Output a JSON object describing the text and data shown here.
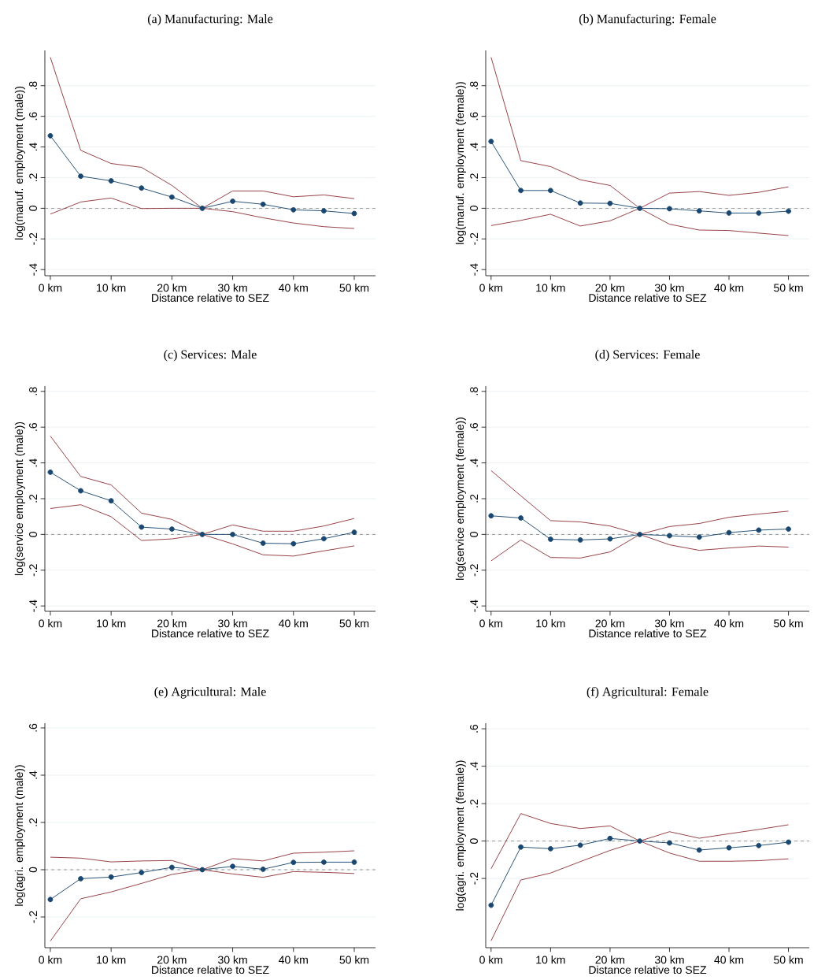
{
  "chart_data": [
    {
      "type": "line",
      "title": "(a) Manufacturing: Male",
      "xlabel": "Distance relative to SEZ",
      "ylabel": "log(manuf. employment (male))",
      "x": [
        0,
        5,
        10,
        15,
        20,
        25,
        30,
        35,
        40,
        45,
        50
      ],
      "xlim": [
        -0.9,
        53.5
      ],
      "ylim": [
        -0.44,
        1.03
      ],
      "xticks": [
        {
          "value": 0,
          "label": "0 km"
        },
        {
          "value": 10,
          "label": "10 km"
        },
        {
          "value": 20,
          "label": "20 km"
        },
        {
          "value": 30,
          "label": "30 km"
        },
        {
          "value": 40,
          "label": "40 km"
        },
        {
          "value": 50,
          "label": "50 km"
        }
      ],
      "yticks": [
        {
          "value": -0.4,
          "label": "-.4"
        },
        {
          "value": -0.2,
          "label": "-.2"
        },
        0,
        {
          "value": 0.2,
          "label": ".2"
        },
        {
          "value": 0.4,
          "label": ".4"
        },
        {
          "value": 0.6,
          "label": ".6"
        },
        {
          "value": 0.8,
          "label": ".8"
        }
      ],
      "grid": "y",
      "ref_lines": [
        {
          "axis": "y",
          "value": 0,
          "color": "#808080",
          "line_style": "dashed"
        }
      ],
      "series": [
        {
          "color": "#90353b",
          "marker": "none",
          "values": [
            0.985,
            0.378,
            0.292,
            0.267,
            0.149,
            0,
            0.113,
            0.113,
            0.075,
            0.087,
            0.063
          ]
        },
        {
          "color": "#90353b",
          "marker": "none",
          "values": [
            -0.038,
            0.041,
            0.067,
            -0.002,
            0,
            0,
            -0.022,
            -0.062,
            -0.096,
            -0.12,
            -0.132
          ]
        },
        {
          "color": "#1a476f",
          "marker": "circle",
          "values": [
            0.473,
            0.209,
            0.179,
            0.132,
            0.073,
            0,
            0.046,
            0.026,
            -0.01,
            -0.017,
            -0.034
          ]
        }
      ]
    },
    {
      "type": "line",
      "title": "(b) Manufacturing: Female",
      "xlabel": "Distance relative to SEZ",
      "ylabel": "log(manuf. employment (female))",
      "x": [
        0,
        5,
        10,
        15,
        20,
        25,
        30,
        35,
        40,
        45,
        50
      ],
      "xlim": [
        -0.9,
        53.5
      ],
      "ylim": [
        -0.44,
        1.03
      ],
      "xticks": [
        {
          "value": 0,
          "label": "0 km"
        },
        {
          "value": 10,
          "label": "10 km"
        },
        {
          "value": 20,
          "label": "20 km"
        },
        {
          "value": 30,
          "label": "30 km"
        },
        {
          "value": 40,
          "label": "40 km"
        },
        {
          "value": 50,
          "label": "50 km"
        }
      ],
      "yticks": [
        {
          "value": -0.4,
          "label": "-.4"
        },
        {
          "value": -0.2,
          "label": "-.2"
        },
        0,
        {
          "value": 0.2,
          "label": ".2"
        },
        {
          "value": 0.4,
          "label": ".4"
        },
        {
          "value": 0.6,
          "label": ".6"
        },
        {
          "value": 0.8,
          "label": ".8"
        }
      ],
      "grid": "y",
      "ref_lines": [
        {
          "axis": "y",
          "value": 0,
          "color": "#808080",
          "line_style": "dashed"
        }
      ],
      "series": [
        {
          "color": "#90353b",
          "marker": "none",
          "values": [
            0.985,
            0.311,
            0.272,
            0.186,
            0.149,
            0,
            0.099,
            0.109,
            0.084,
            0.104,
            0.14
          ]
        },
        {
          "color": "#90353b",
          "marker": "none",
          "values": [
            -0.113,
            -0.079,
            -0.039,
            -0.116,
            -0.082,
            0,
            -0.104,
            -0.142,
            -0.145,
            -0.162,
            -0.178
          ]
        },
        {
          "color": "#1a476f",
          "marker": "circle",
          "values": [
            0.436,
            0.116,
            0.116,
            0.034,
            0.032,
            0,
            -0.003,
            -0.017,
            -0.031,
            -0.031,
            -0.019
          ]
        }
      ]
    },
    {
      "type": "line",
      "title": "(c) Services: Male",
      "xlabel": "Distance relative to SEZ",
      "ylabel": "log(service employment (male))",
      "x": [
        0,
        5,
        10,
        15,
        20,
        25,
        30,
        35,
        40,
        45,
        50
      ],
      "xlim": [
        -0.9,
        53.5
      ],
      "ylim": [
        -0.43,
        0.83
      ],
      "xticks": [
        {
          "value": 0,
          "label": "0 km"
        },
        {
          "value": 10,
          "label": "10 km"
        },
        {
          "value": 20,
          "label": "20 km"
        },
        {
          "value": 30,
          "label": "30 km"
        },
        {
          "value": 40,
          "label": "40 km"
        },
        {
          "value": 50,
          "label": "50 km"
        }
      ],
      "yticks": [
        {
          "value": -0.4,
          "label": "-.4"
        },
        {
          "value": -0.2,
          "label": "-.2"
        },
        0,
        {
          "value": 0.2,
          "label": ".2"
        },
        {
          "value": 0.4,
          "label": ".4"
        },
        {
          "value": 0.6,
          "label": ".6"
        },
        {
          "value": 0.8,
          "label": ".8"
        }
      ],
      "grid": "y",
      "ref_lines": [
        {
          "axis": "y",
          "value": 0,
          "color": "#808080",
          "line_style": "dashed"
        }
      ],
      "series": [
        {
          "color": "#90353b",
          "marker": "none",
          "values": [
            0.55,
            0.324,
            0.277,
            0.119,
            0.084,
            0,
            0.053,
            0.018,
            0.018,
            0.047,
            0.089
          ]
        },
        {
          "color": "#90353b",
          "marker": "none",
          "values": [
            0.145,
            0.166,
            0.099,
            -0.034,
            -0.025,
            0,
            -0.053,
            -0.114,
            -0.121,
            -0.092,
            -0.064
          ]
        },
        {
          "color": "#1a476f",
          "marker": "circle",
          "values": [
            0.348,
            0.244,
            0.188,
            0.041,
            0.03,
            0,
            0,
            -0.049,
            -0.052,
            -0.024,
            0.012
          ]
        }
      ]
    },
    {
      "type": "line",
      "title": "(d) Services: Female",
      "xlabel": "Distance relative to SEZ",
      "ylabel": "log(service employment (female))",
      "x": [
        0,
        5,
        10,
        15,
        20,
        25,
        30,
        35,
        40,
        45,
        50
      ],
      "xlim": [
        -0.9,
        53.5
      ],
      "ylim": [
        -0.43,
        0.83
      ],
      "xticks": [
        {
          "value": 0,
          "label": "0 km"
        },
        {
          "value": 10,
          "label": "10 km"
        },
        {
          "value": 20,
          "label": "20 km"
        },
        {
          "value": 30,
          "label": "30 km"
        },
        {
          "value": 40,
          "label": "40 km"
        },
        {
          "value": 50,
          "label": "50 km"
        }
      ],
      "yticks": [
        {
          "value": -0.4,
          "label": "-.4"
        },
        {
          "value": -0.2,
          "label": "-.2"
        },
        0,
        {
          "value": 0.2,
          "label": ".2"
        },
        {
          "value": 0.4,
          "label": ".4"
        },
        {
          "value": 0.6,
          "label": ".6"
        },
        {
          "value": 0.8,
          "label": ".8"
        }
      ],
      "grid": "y",
      "ref_lines": [
        {
          "axis": "y",
          "value": 0,
          "color": "#808080",
          "line_style": "dashed"
        }
      ],
      "series": [
        {
          "color": "#90353b",
          "marker": "none",
          "values": [
            0.357,
            0.216,
            0.077,
            0.07,
            0.047,
            0,
            0.044,
            0.061,
            0.096,
            0.114,
            0.13
          ]
        },
        {
          "color": "#90353b",
          "marker": "none",
          "values": [
            -0.148,
            -0.031,
            -0.129,
            -0.132,
            -0.098,
            0,
            -0.058,
            -0.089,
            -0.076,
            -0.065,
            -0.071
          ]
        },
        {
          "color": "#1a476f",
          "marker": "circle",
          "values": [
            0.104,
            0.092,
            -0.027,
            -0.031,
            -0.025,
            0,
            -0.007,
            -0.015,
            0.01,
            0.024,
            0.03
          ]
        }
      ]
    },
    {
      "type": "line",
      "title": "(e) Agricultural: Male",
      "xlabel": "Distance relative to SEZ",
      "ylabel": "log(agri. employment (male))",
      "x": [
        0,
        5,
        10,
        15,
        20,
        25,
        30,
        35,
        40,
        45,
        50
      ],
      "xlim": [
        -0.9,
        53.5
      ],
      "ylim": [
        -0.33,
        0.62
      ],
      "xticks": [
        {
          "value": 0,
          "label": "0 km"
        },
        {
          "value": 10,
          "label": "10 km"
        },
        {
          "value": 20,
          "label": "20 km"
        },
        {
          "value": 30,
          "label": "30 km"
        },
        {
          "value": 40,
          "label": "40 km"
        },
        {
          "value": 50,
          "label": "50 km"
        }
      ],
      "yticks": [
        {
          "value": -0.2,
          "label": "-.2"
        },
        0,
        {
          "value": 0.2,
          "label": ".2"
        },
        {
          "value": 0.4,
          "label": ".4"
        },
        {
          "value": 0.6,
          "label": ".6"
        }
      ],
      "grid": "y",
      "ref_lines": [
        {
          "axis": "y",
          "value": 0,
          "color": "#808080",
          "line_style": "dashed"
        }
      ],
      "series": [
        {
          "color": "#90353b",
          "marker": "none",
          "values": [
            0.053,
            0.049,
            0.033,
            0.037,
            0.039,
            0,
            0.047,
            0.037,
            0.07,
            0.074,
            0.08
          ]
        },
        {
          "color": "#90353b",
          "marker": "none",
          "values": [
            -0.302,
            -0.123,
            -0.094,
            -0.058,
            -0.02,
            0,
            -0.018,
            -0.032,
            -0.008,
            -0.011,
            -0.016
          ]
        },
        {
          "color": "#1a476f",
          "marker": "circle",
          "values": [
            -0.126,
            -0.038,
            -0.031,
            -0.012,
            0.01,
            0,
            0.014,
            0.002,
            0.031,
            0.032,
            0.032
          ]
        }
      ]
    },
    {
      "type": "line",
      "title": "(f) Agricultural: Female",
      "xlabel": "Distance relative to SEZ",
      "ylabel": "log(agri. employment (female))",
      "x": [
        0,
        5,
        10,
        15,
        20,
        25,
        30,
        35,
        40,
        45,
        50
      ],
      "xlim": [
        -0.9,
        53.5
      ],
      "ylim": [
        -0.57,
        0.63
      ],
      "xticks": [
        {
          "value": 0,
          "label": "0 km"
        },
        {
          "value": 10,
          "label": "10 km"
        },
        {
          "value": 20,
          "label": "20 km"
        },
        {
          "value": 30,
          "label": "30 km"
        },
        {
          "value": 40,
          "label": "40 km"
        },
        {
          "value": 50,
          "label": "50 km"
        }
      ],
      "yticks": [
        {
          "value": -0.2,
          "label": "-.2"
        },
        0,
        {
          "value": 0.2,
          "label": ".2"
        },
        {
          "value": 0.4,
          "label": ".4"
        },
        {
          "value": 0.6,
          "label": ".6"
        }
      ],
      "grid": "y",
      "ref_lines": [
        {
          "axis": "y",
          "value": 0,
          "color": "#808080",
          "line_style": "dashed"
        }
      ],
      "series": [
        {
          "color": "#90353b",
          "marker": "none",
          "values": [
            -0.148,
            0.147,
            0.094,
            0.067,
            0.081,
            0,
            0.05,
            0.015,
            0.039,
            0.062,
            0.087
          ]
        },
        {
          "color": "#90353b",
          "marker": "none",
          "values": [
            -0.533,
            -0.208,
            -0.171,
            -0.11,
            -0.05,
            0,
            -0.064,
            -0.108,
            -0.108,
            -0.105,
            -0.095
          ]
        },
        {
          "color": "#1a476f",
          "marker": "circle",
          "values": [
            -0.343,
            -0.032,
            -0.041,
            -0.022,
            0.014,
            0,
            -0.01,
            -0.048,
            -0.036,
            -0.024,
            -0.006
          ]
        }
      ]
    }
  ]
}
